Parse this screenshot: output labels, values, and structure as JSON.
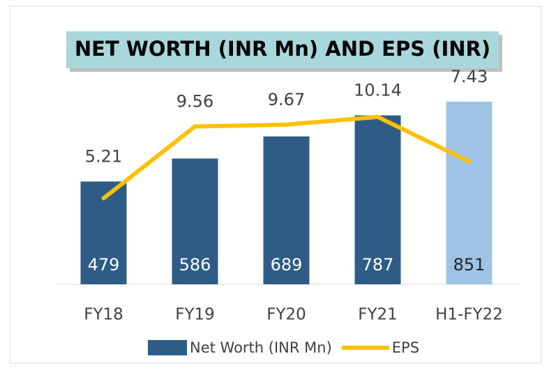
{
  "chart_data": {
    "type": "bar_line",
    "title": "NET WORTH (INR Mn) AND EPS (INR)",
    "categories": [
      "FY18",
      "FY19",
      "FY20",
      "FY21",
      "H1-FY22"
    ],
    "ylim": [
      0,
      1000
    ],
    "y2lim": [
      0,
      13
    ],
    "series": [
      {
        "name": "Net Worth (INR Mn)",
        "type": "bar",
        "color": "#2e5c87",
        "colors": [
          "#2e5c87",
          "#2e5c87",
          "#2e5c87",
          "#2e5c87",
          "#9dc3e6"
        ],
        "label_colors": [
          "#ffffff",
          "#ffffff",
          "#ffffff",
          "#ffffff",
          "#262626"
        ],
        "values": [
          479,
          586,
          689,
          787,
          851
        ]
      },
      {
        "name": "EPS",
        "type": "line",
        "axis": "y2",
        "color": "#ffc000",
        "values": [
          5.21,
          9.56,
          9.67,
          10.14,
          7.43
        ]
      }
    ]
  }
}
